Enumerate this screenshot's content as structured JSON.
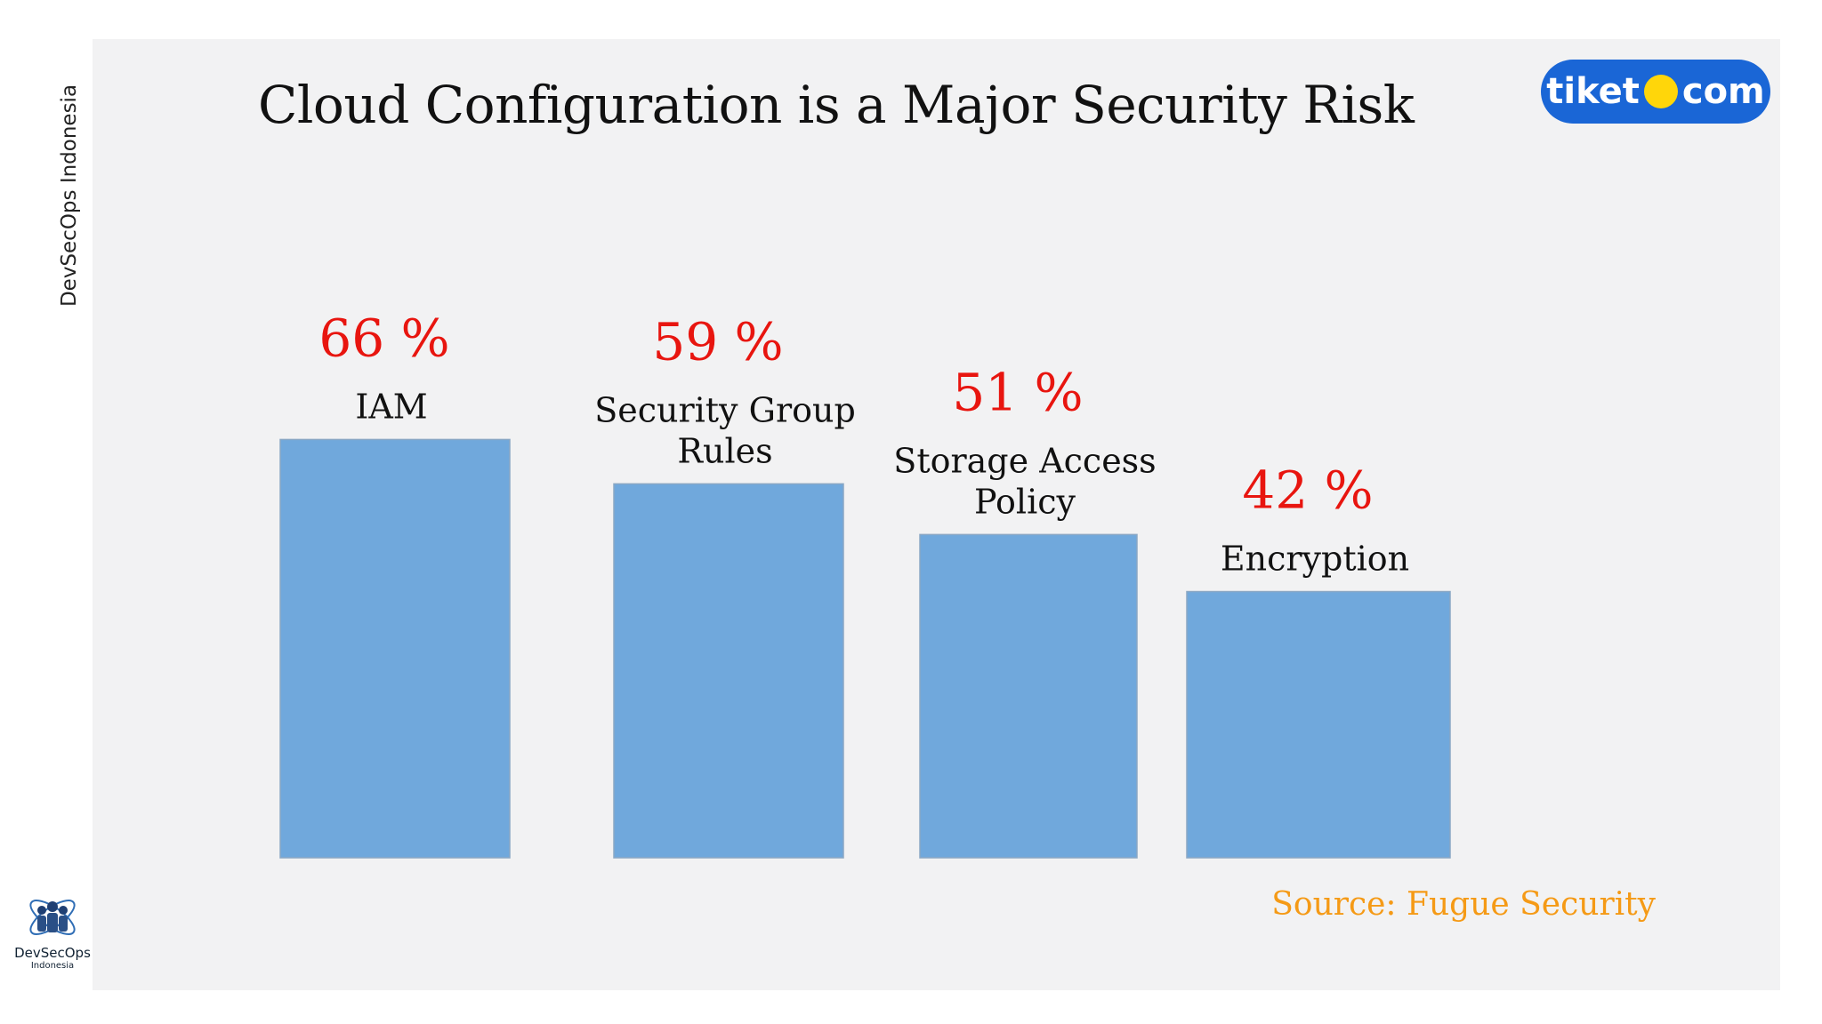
{
  "side_label": "DevSecOps Indonesia",
  "title": "Cloud Configuration is a Major Security Risk",
  "brand": {
    "part1": "tiket",
    "part2": "com",
    "color": "#1a66d6",
    "dot_color": "#ffd60a"
  },
  "source": "Source: Fugue Security",
  "org_logo": {
    "name": "DevSecOps",
    "sub": "Indonesia"
  },
  "colors": {
    "bar": "#70a8dc",
    "bar_stroke": "#8aa7c4",
    "value_label": "#e8150f",
    "category_label": "#111111",
    "source": "#f59a16"
  },
  "chart_data": {
    "type": "bar",
    "title": "Cloud Configuration is a Major Security Risk",
    "categories": [
      "IAM",
      "Security Group Rules",
      "Storage Access Policy",
      "Encryption"
    ],
    "category_lines": [
      [
        "IAM"
      ],
      [
        "Security Group",
        "Rules"
      ],
      [
        "Storage Access",
        "Policy"
      ],
      [
        "Encryption"
      ]
    ],
    "values": [
      66,
      59,
      51,
      42
    ],
    "value_labels": [
      "66 %",
      "59 %",
      "51 %",
      "42 %"
    ],
    "xlabel": "",
    "ylabel": "",
    "grid": false,
    "legend": "none"
  }
}
